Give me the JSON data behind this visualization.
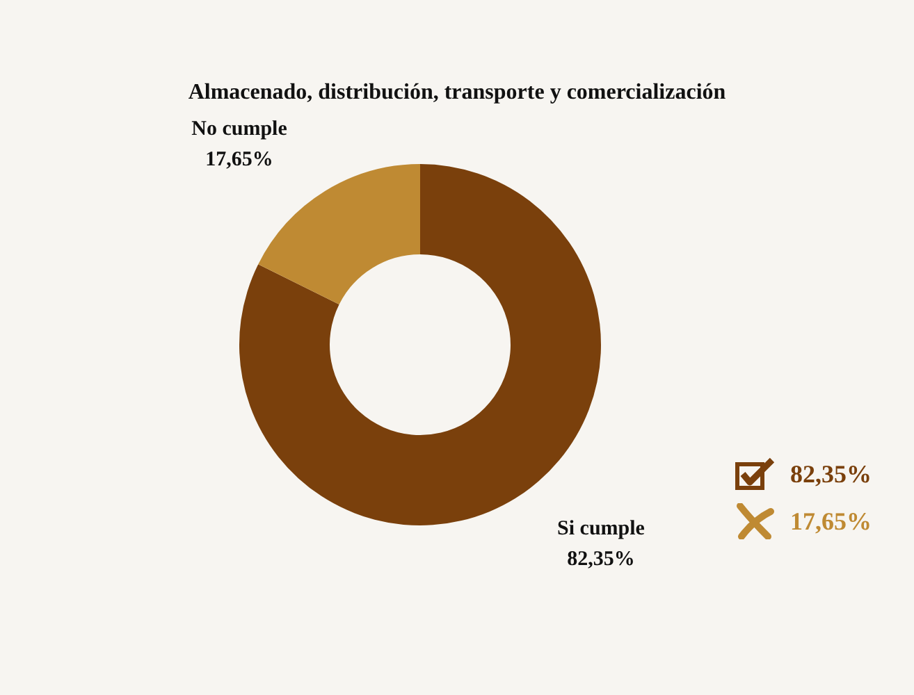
{
  "chart_data": {
    "type": "donut",
    "title": "Almacenado, distribución, transporte y comercialización",
    "categories": [
      "Si cumple",
      "No cumple"
    ],
    "values": [
      82.35,
      17.65
    ],
    "value_labels": [
      "82,35%",
      "17,65%"
    ],
    "colors": [
      "#7a400c",
      "#bf8a33"
    ]
  }
}
